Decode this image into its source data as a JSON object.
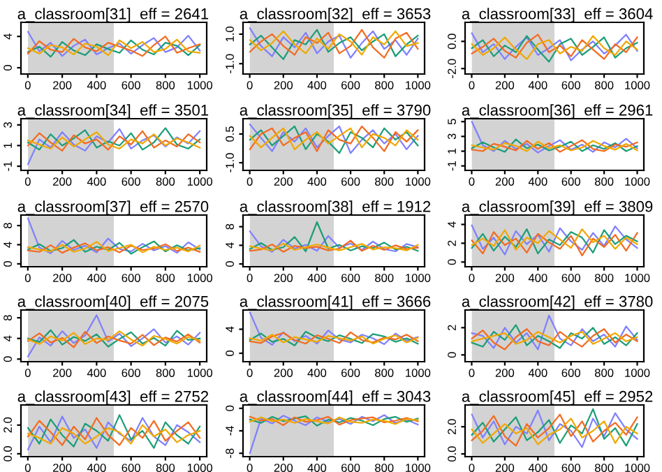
{
  "chart_data": [
    {
      "type": "line",
      "title": "a_classroom[31]  eff = 2641",
      "x": [
        1,
        67,
        133,
        200,
        267,
        333,
        400,
        467,
        533,
        600,
        667,
        733,
        800,
        867,
        933,
        1000
      ],
      "xlim": [
        -40,
        1040
      ],
      "xticks": [
        0,
        200,
        400,
        600,
        800,
        1000
      ],
      "bands": [
        {
          "axis": "x",
          "from": 1,
          "to": 500,
          "color": "#d3d3d3"
        }
      ],
      "ylim": [
        -0.8,
        5.8
      ],
      "yticks": [
        0,
        4
      ],
      "series": [
        {
          "color": "#7f7fff",
          "values": [
            4.6,
            2.1,
            3.2,
            1.5,
            2.8,
            3.6,
            1.7,
            2.5,
            3.1,
            1.8,
            2.9,
            3.8,
            2.0,
            2.6,
            4.1,
            2.2
          ]
        },
        {
          "color": "#1b9e77",
          "values": [
            2.0,
            2.7,
            1.4,
            3.3,
            2.2,
            1.6,
            3.0,
            2.4,
            1.9,
            3.5,
            2.3,
            1.7,
            3.2,
            2.8,
            1.6,
            2.9
          ]
        },
        {
          "color": "#f26b21",
          "values": [
            1.8,
            3.4,
            2.3,
            2.0,
            3.7,
            2.6,
            2.1,
            3.2,
            2.7,
            2.2,
            1.5,
            2.9,
            4.0,
            1.9,
            2.5,
            3.0
          ]
        },
        {
          "color": "#f0a800",
          "values": [
            2.5,
            1.8,
            2.9,
            2.6,
            1.7,
            3.1,
            2.7,
            1.6,
            3.5,
            2.5,
            3.3,
            2.0,
            2.4,
            3.6,
            2.1,
            1.9
          ]
        }
      ]
    },
    {
      "type": "line",
      "title": "a_classroom[32]  eff = 3653",
      "x": [
        1,
        67,
        133,
        200,
        267,
        333,
        400,
        467,
        533,
        600,
        667,
        733,
        800,
        867,
        933,
        1000
      ],
      "xlim": [
        -40,
        1040
      ],
      "xticks": [
        0,
        200,
        400,
        600,
        800,
        1000
      ],
      "bands": [
        {
          "axis": "x",
          "from": 1,
          "to": 500,
          "color": "#d3d3d3"
        }
      ],
      "ylim": [
        -1.7,
        1.8
      ],
      "yticks": [
        {
          "value": -1.0,
          "label": "-1.0"
        },
        {
          "value": 1.0,
          "label": "1.0"
        }
      ],
      "series": [
        {
          "color": "#7f7fff",
          "values": [
            1.4,
            0.2,
            -0.5,
            0.8,
            0.1,
            1.1,
            -0.3,
            0.5,
            0.9,
            -0.6,
            0.4,
            1.2,
            0.0,
            0.6,
            -0.4,
            0.7
          ]
        },
        {
          "color": "#1b9e77",
          "values": [
            0.3,
            0.9,
            0.1,
            -0.7,
            0.6,
            0.3,
            1.3,
            -0.2,
            0.4,
            0.8,
            -0.1,
            0.5,
            1.0,
            -0.5,
            0.3,
            0.9
          ]
        },
        {
          "color": "#f26b21",
          "values": [
            -0.2,
            0.5,
            1.0,
            0.2,
            -0.4,
            0.8,
            0.4,
            1.1,
            -0.3,
            0.2,
            1.3,
            0.1,
            -0.6,
            0.7,
            1.1,
            0.0
          ]
        },
        {
          "color": "#f0a800",
          "values": [
            0.6,
            -0.1,
            0.4,
            1.2,
            0.3,
            -0.3,
            0.7,
            0.0,
            1.0,
            0.5,
            -0.4,
            0.8,
            0.3,
            1.2,
            0.2,
            0.4
          ]
        }
      ]
    },
    {
      "type": "line",
      "title": "a_classroom[33]  eff = 3604",
      "x": [
        1,
        67,
        133,
        200,
        267,
        333,
        400,
        467,
        533,
        600,
        667,
        733,
        800,
        867,
        933,
        1000
      ],
      "xlim": [
        -40,
        1040
      ],
      "xticks": [
        0,
        200,
        400,
        600,
        800,
        1000
      ],
      "bands": [
        {
          "axis": "x",
          "from": 1,
          "to": 500,
          "color": "#d3d3d3"
        }
      ],
      "ylim": [
        -2.4,
        1.4
      ],
      "yticks": [
        {
          "value": -2.0,
          "label": "-2.0"
        },
        {
          "value": 0.0,
          "label": "0.0"
        }
      ],
      "series": [
        {
          "color": "#7f7fff",
          "values": [
            0.6,
            -0.8,
            -0.2,
            -1.3,
            -0.4,
            0.3,
            -1.0,
            -0.5,
            0.1,
            -1.4,
            -0.6,
            0.0,
            -0.9,
            -0.3,
            0.5,
            -0.7
          ]
        },
        {
          "color": "#1b9e77",
          "values": [
            -0.5,
            0.1,
            -1.1,
            -0.3,
            -0.8,
            0.4,
            -0.6,
            -1.5,
            -0.2,
            0.2,
            -1.0,
            -0.4,
            0.3,
            -1.2,
            -0.5,
            -0.1
          ]
        },
        {
          "color": "#f26b21",
          "values": [
            -0.9,
            -0.4,
            0.2,
            -0.7,
            -1.2,
            -0.1,
            0.5,
            -0.8,
            -0.3,
            -1.1,
            0.1,
            -0.6,
            -1.3,
            -0.2,
            -0.8,
            0.3
          ]
        },
        {
          "color": "#f0a800",
          "values": [
            -0.2,
            -1.0,
            -0.5,
            0.3,
            -0.6,
            -1.3,
            -0.2,
            0.1,
            -0.9,
            -0.4,
            -0.7,
            0.4,
            -0.5,
            -1.0,
            0.0,
            -0.6
          ]
        }
      ]
    },
    {
      "type": "line",
      "title": "a_classroom[34]  eff = 3501",
      "x": [
        1,
        67,
        133,
        200,
        267,
        333,
        400,
        467,
        533,
        600,
        667,
        733,
        800,
        867,
        933,
        1000
      ],
      "xlim": [
        -40,
        1040
      ],
      "xticks": [
        0,
        200,
        400,
        600,
        800,
        1000
      ],
      "bands": [
        {
          "axis": "x",
          "from": 1,
          "to": 500,
          "color": "#d3d3d3"
        }
      ],
      "ylim": [
        -1.4,
        3.6
      ],
      "yticks": [
        -1,
        1,
        3
      ],
      "series": [
        {
          "color": "#7f7fff",
          "values": [
            -0.8,
            1.6,
            0.8,
            2.3,
            1.1,
            0.5,
            1.9,
            1.3,
            2.6,
            0.7,
            1.5,
            2.0,
            0.9,
            1.8,
            1.2,
            2.4
          ]
        },
        {
          "color": "#1b9e77",
          "values": [
            1.3,
            0.6,
            2.1,
            1.0,
            1.7,
            2.5,
            0.8,
            1.4,
            1.0,
            2.2,
            0.6,
            1.3,
            2.7,
            1.1,
            0.7,
            1.6
          ]
        },
        {
          "color": "#f26b21",
          "values": [
            1.0,
            2.2,
            1.3,
            0.5,
            2.0,
            1.2,
            1.6,
            0.6,
            1.9,
            1.1,
            2.4,
            0.8,
            1.5,
            0.9,
            2.1,
            1.3
          ]
        },
        {
          "color": "#f0a800",
          "values": [
            1.5,
            1.1,
            0.7,
            1.8,
            0.9,
            1.6,
            2.3,
            1.1,
            0.7,
            1.6,
            1.2,
            2.1,
            1.0,
            1.7,
            1.3,
            0.8
          ]
        }
      ]
    },
    {
      "type": "line",
      "title": "a_classroom[35]  eff = 3790",
      "x": [
        1,
        67,
        133,
        200,
        267,
        333,
        400,
        467,
        533,
        600,
        667,
        733,
        800,
        867,
        933,
        1000
      ],
      "xlim": [
        -40,
        1040
      ],
      "xticks": [
        0,
        200,
        400,
        600,
        800,
        1000
      ],
      "bands": [
        {
          "axis": "x",
          "from": 1,
          "to": 500,
          "color": "#d3d3d3"
        }
      ],
      "ylim": [
        -1.4,
        1.3
      ],
      "yticks": [
        {
          "value": -1.0,
          "label": "-1.0"
        },
        {
          "value": 0.5,
          "label": "0.5"
        }
      ],
      "series": [
        {
          "color": "#7f7fff",
          "values": [
            1.0,
            0.3,
            -0.4,
            0.6,
            0.1,
            0.8,
            -0.2,
            0.4,
            0.9,
            -0.5,
            0.2,
            0.7,
            0.0,
            0.5,
            -0.3,
            0.4
          ]
        },
        {
          "color": "#1b9e77",
          "values": [
            0.2,
            0.7,
            -0.1,
            0.4,
            0.9,
            -0.3,
            0.5,
            0.1,
            -0.5,
            0.6,
            0.3,
            -0.2,
            0.8,
            0.2,
            0.6,
            -0.1
          ]
        },
        {
          "color": "#f26b21",
          "values": [
            -0.3,
            0.5,
            0.8,
            -0.1,
            0.3,
            0.6,
            -0.4,
            0.7,
            0.2,
            0.0,
            0.9,
            0.3,
            -0.4,
            0.6,
            0.1,
            0.7
          ]
        },
        {
          "color": "#f0a800",
          "values": [
            0.4,
            -0.2,
            0.3,
            0.8,
            -0.3,
            0.2,
            0.6,
            0.0,
            0.4,
            0.8,
            -0.2,
            0.5,
            0.3,
            -0.1,
            0.7,
            0.2
          ]
        }
      ]
    },
    {
      "type": "line",
      "title": "a_classroom[36]  eff = 2961",
      "x": [
        1,
        67,
        133,
        200,
        267,
        333,
        400,
        467,
        533,
        600,
        667,
        733,
        800,
        867,
        933,
        1000
      ],
      "xlim": [
        -40,
        1040
      ],
      "xticks": [
        0,
        200,
        400,
        600,
        800,
        1000
      ],
      "bands": [
        {
          "axis": "x",
          "from": 1,
          "to": 500,
          "color": "#d3d3d3"
        }
      ],
      "ylim": [
        -1.6,
        5.4
      ],
      "yticks": [
        -1,
        1,
        3,
        5
      ],
      "series": [
        {
          "color": "#7f7fff",
          "values": [
            5.0,
            1.8,
            1.0,
            2.4,
            1.3,
            2.0,
            0.8,
            1.7,
            2.5,
            1.2,
            1.9,
            0.9,
            2.2,
            1.5,
            2.7,
            1.4
          ]
        },
        {
          "color": "#1b9e77",
          "values": [
            1.4,
            2.2,
            1.5,
            0.9,
            2.6,
            1.4,
            1.9,
            1.1,
            1.6,
            2.3,
            1.0,
            1.8,
            1.3,
            2.1,
            1.0,
            1.7
          ]
        },
        {
          "color": "#f26b21",
          "values": [
            1.2,
            1.0,
            2.0,
            1.6,
            1.1,
            2.4,
            1.3,
            2.1,
            0.9,
            1.7,
            2.5,
            1.3,
            1.0,
            1.9,
            1.6,
            2.2
          ]
        },
        {
          "color": "#f0a800",
          "values": [
            1.8,
            1.5,
            1.2,
            2.1,
            1.7,
            1.0,
            2.3,
            1.4,
            1.8,
            1.1,
            1.5,
            2.4,
            1.7,
            1.2,
            2.0,
            1.1
          ]
        }
      ]
    },
    {
      "type": "line",
      "title": "a_classroom[37]  eff = 2570",
      "x": [
        1,
        67,
        133,
        200,
        267,
        333,
        400,
        467,
        533,
        600,
        667,
        733,
        800,
        867,
        933,
        1000
      ],
      "xlim": [
        -40,
        1040
      ],
      "xticks": [
        0,
        200,
        400,
        600,
        800,
        1000
      ],
      "bands": [
        {
          "axis": "x",
          "from": 1,
          "to": 500,
          "color": "#d3d3d3"
        }
      ],
      "ylim": [
        -0.6,
        10.2
      ],
      "yticks": [
        0,
        4,
        8
      ],
      "series": [
        {
          "color": "#7f7fff",
          "values": [
            9.5,
            3.4,
            2.2,
            4.8,
            2.9,
            3.8,
            2.4,
            5.3,
            3.1,
            2.6,
            4.2,
            2.8,
            3.7,
            2.3,
            4.5,
            3.0
          ]
        },
        {
          "color": "#1b9e77",
          "values": [
            3.0,
            4.1,
            2.7,
            3.3,
            5.0,
            2.5,
            3.6,
            2.9,
            4.4,
            2.1,
            3.5,
            4.7,
            2.6,
            3.9,
            2.8,
            3.3
          ]
        },
        {
          "color": "#f26b21",
          "values": [
            2.8,
            2.5,
            3.9,
            2.3,
            3.4,
            4.3,
            2.8,
            3.5,
            2.4,
            3.8,
            2.9,
            3.2,
            4.1,
            2.7,
            3.4,
            2.5
          ]
        },
        {
          "color": "#f0a800",
          "values": [
            3.5,
            3.0,
            2.6,
            4.0,
            2.5,
            3.2,
            4.6,
            2.7,
            3.3,
            4.0,
            2.4,
            3.6,
            2.9,
            3.4,
            2.6,
            3.8
          ]
        }
      ]
    },
    {
      "type": "line",
      "title": "a_classroom[38]  eff = 1912",
      "x": [
        1,
        67,
        133,
        200,
        267,
        333,
        400,
        467,
        533,
        600,
        667,
        733,
        800,
        867,
        933,
        1000
      ],
      "xlim": [
        -40,
        1040
      ],
      "xticks": [
        0,
        200,
        400,
        600,
        800,
        1000
      ],
      "bands": [
        {
          "axis": "x",
          "from": 1,
          "to": 500,
          "color": "#d3d3d3"
        }
      ],
      "ylim": [
        -0.6,
        10.5
      ],
      "yticks": [
        0,
        4,
        8
      ],
      "series": [
        {
          "color": "#7f7fff",
          "values": [
            7.0,
            3.8,
            2.6,
            5.2,
            3.3,
            4.1,
            2.8,
            6.0,
            3.5,
            4.4,
            3.0,
            4.8,
            3.2,
            2.7,
            4.3,
            3.6
          ]
        },
        {
          "color": "#1b9e77",
          "values": [
            3.2,
            4.5,
            3.0,
            3.6,
            5.8,
            2.7,
            9.0,
            3.3,
            4.1,
            2.9,
            3.8,
            3.4,
            4.6,
            3.1,
            3.7,
            2.8
          ]
        },
        {
          "color": "#f26b21",
          "values": [
            2.8,
            3.1,
            4.2,
            2.6,
            3.9,
            3.4,
            3.7,
            2.9,
            3.3,
            5.0,
            2.8,
            3.9,
            3.0,
            4.0,
            3.2,
            3.5
          ]
        },
        {
          "color": "#f0a800",
          "values": [
            3.8,
            3.3,
            2.9,
            4.4,
            3.0,
            3.6,
            4.2,
            3.5,
            2.9,
            3.6,
            4.3,
            3.1,
            3.6,
            3.4,
            2.9,
            4.1
          ]
        }
      ]
    },
    {
      "type": "line",
      "title": "a_classroom[39]  eff = 3809",
      "x": [
        1,
        67,
        133,
        200,
        267,
        333,
        400,
        467,
        533,
        600,
        667,
        733,
        800,
        867,
        933,
        1000
      ],
      "xlim": [
        -40,
        1040
      ],
      "xticks": [
        0,
        200,
        400,
        600,
        800,
        1000
      ],
      "bands": [
        {
          "axis": "x",
          "from": 1,
          "to": 500,
          "color": "#d3d3d3"
        }
      ],
      "ylim": [
        -0.5,
        5.0
      ],
      "yticks": [
        0,
        2,
        4
      ],
      "series": [
        {
          "color": "#7f7fff",
          "values": [
            3.9,
            1.4,
            2.6,
            0.8,
            3.3,
            1.9,
            2.9,
            1.1,
            3.6,
            2.2,
            1.3,
            3.1,
            1.7,
            3.8,
            2.4,
            1.5
          ]
        },
        {
          "color": "#1b9e77",
          "values": [
            1.5,
            3.0,
            1.2,
            2.7,
            1.6,
            3.5,
            0.9,
            2.4,
            1.8,
            3.2,
            2.6,
            1.0,
            3.4,
            1.9,
            2.8,
            2.2
          ]
        },
        {
          "color": "#f26b21",
          "values": [
            2.3,
            0.9,
            3.2,
            1.8,
            2.5,
            1.0,
            3.0,
            2.1,
            1.4,
            2.8,
            0.7,
            2.5,
            1.6,
            2.9,
            1.2,
            3.1
          ]
        },
        {
          "color": "#f0a800",
          "values": [
            1.8,
            2.5,
            1.7,
            3.4,
            1.3,
            2.6,
            2.0,
            3.3,
            2.4,
            1.5,
            3.5,
            2.1,
            2.8,
            1.4,
            2.6,
            1.9
          ]
        }
      ]
    },
    {
      "type": "line",
      "title": "a_classroom[40]  eff = 2075",
      "x": [
        1,
        67,
        133,
        200,
        267,
        333,
        400,
        467,
        533,
        600,
        667,
        733,
        800,
        867,
        933,
        1000
      ],
      "xlim": [
        -40,
        1040
      ],
      "xticks": [
        0,
        200,
        400,
        600,
        800,
        1000
      ],
      "bands": [
        {
          "axis": "x",
          "from": 1,
          "to": 500,
          "color": "#d3d3d3"
        }
      ],
      "ylim": [
        -0.5,
        9.5
      ],
      "yticks": [
        0,
        4,
        8
      ],
      "series": [
        {
          "color": "#7f7fff",
          "values": [
            0.5,
            4.2,
            2.6,
            5.4,
            3.1,
            4.6,
            8.5,
            3.4,
            4.9,
            2.5,
            4.0,
            5.8,
            3.2,
            4.4,
            2.8,
            5.1
          ]
        },
        {
          "color": "#1b9e77",
          "values": [
            4.0,
            3.3,
            5.6,
            2.8,
            4.3,
            3.5,
            4.8,
            2.4,
            3.9,
            5.2,
            3.0,
            4.1,
            2.6,
            5.5,
            3.7,
            4.0
          ]
        },
        {
          "color": "#f26b21",
          "values": [
            3.5,
            5.0,
            3.2,
            4.1,
            2.3,
            5.3,
            3.1,
            4.4,
            3.6,
            3.0,
            4.7,
            2.7,
            4.2,
            3.4,
            4.8,
            3.2
          ]
        },
        {
          "color": "#f0a800",
          "values": [
            3.8,
            2.9,
            4.4,
            3.6,
            5.1,
            2.9,
            4.0,
            3.7,
            5.4,
            3.8,
            2.6,
            4.5,
            3.9,
            3.0,
            4.3,
            3.6
          ]
        }
      ]
    },
    {
      "type": "line",
      "title": "a_classroom[41]  eff = 3666",
      "x": [
        1,
        67,
        133,
        200,
        267,
        333,
        400,
        467,
        533,
        600,
        667,
        733,
        800,
        867,
        933,
        1000
      ],
      "xlim": [
        -40,
        1040
      ],
      "xticks": [
        0,
        200,
        400,
        600,
        800,
        1000
      ],
      "bands": [
        {
          "axis": "x",
          "from": 1,
          "to": 500,
          "color": "#d3d3d3"
        }
      ],
      "ylim": [
        -1.4,
        7.2
      ],
      "yticks": [
        0,
        4
      ],
      "series": [
        {
          "color": "#7f7fff",
          "values": [
            6.8,
            2.6,
            1.4,
            3.5,
            2.0,
            2.9,
            1.6,
            3.8,
            2.3,
            1.8,
            3.1,
            2.5,
            1.5,
            3.3,
            2.1,
            2.7
          ]
        },
        {
          "color": "#1b9e77",
          "values": [
            2.2,
            3.3,
            1.9,
            2.4,
            1.3,
            3.6,
            2.6,
            2.0,
            3.0,
            2.4,
            1.7,
            3.2,
            2.8,
            1.9,
            2.5,
            1.6
          ]
        },
        {
          "color": "#f26b21",
          "values": [
            2.0,
            1.7,
            2.8,
            3.4,
            2.2,
            1.6,
            3.0,
            2.4,
            1.7,
            3.5,
            2.2,
            1.8,
            2.6,
            2.3,
            3.1,
            2.0
          ]
        },
        {
          "color": "#f0a800",
          "values": [
            2.5,
            2.1,
            3.1,
            1.8,
            2.7,
            2.3,
            1.9,
            2.9,
            2.5,
            2.1,
            2.8,
            1.6,
            2.4,
            3.0,
            1.8,
            2.6
          ]
        }
      ]
    },
    {
      "type": "line",
      "title": "a_classroom[42]  eff = 3780",
      "x": [
        1,
        67,
        133,
        200,
        267,
        333,
        400,
        467,
        533,
        600,
        667,
        733,
        800,
        867,
        933,
        1000
      ],
      "xlim": [
        -40,
        1040
      ],
      "xticks": [
        0,
        200,
        400,
        600,
        800,
        1000
      ],
      "bands": [
        {
          "axis": "x",
          "from": 1,
          "to": 500,
          "color": "#d3d3d3"
        }
      ],
      "ylim": [
        -0.5,
        3.3
      ],
      "yticks": [
        0,
        2
      ],
      "series": [
        {
          "color": "#7f7fff",
          "values": [
            1.6,
            1.4,
            0.5,
            2.0,
            0.9,
            1.6,
            0.4,
            2.9,
            1.2,
            0.7,
            1.9,
            1.0,
            1.5,
            0.6,
            2.1,
            1.1
          ]
        },
        {
          "color": "#1b9e77",
          "values": [
            0.9,
            0.6,
            1.7,
            1.1,
            2.2,
            0.7,
            1.4,
            1.0,
            0.5,
            1.6,
            1.2,
            2.0,
            0.8,
            1.3,
            0.7,
            1.6
          ]
        },
        {
          "color": "#f26b21",
          "values": [
            1.2,
            1.8,
            0.9,
            0.4,
            1.3,
            1.9,
            1.0,
            0.7,
            1.7,
            1.1,
            0.6,
            1.4,
            1.9,
            0.9,
            1.5,
            1.0
          ]
        },
        {
          "color": "#f0a800",
          "values": [
            1.0,
            1.2,
            1.4,
            1.6,
            0.8,
            1.1,
            1.7,
            1.3,
            0.9,
            1.4,
            1.7,
            0.8,
            1.2,
            1.6,
            1.0,
            1.3
          ]
        }
      ]
    },
    {
      "type": "line",
      "title": "a_classroom[43]  eff = 2752",
      "x": [
        1,
        67,
        133,
        200,
        267,
        333,
        400,
        467,
        533,
        600,
        667,
        733,
        800,
        867,
        933,
        1000
      ],
      "xlim": [
        -40,
        1040
      ],
      "xticks": [
        0,
        200,
        400,
        600,
        800,
        1000
      ],
      "bands": [
        {
          "axis": "x",
          "from": 1,
          "to": 500,
          "color": "#d3d3d3"
        }
      ],
      "ylim": [
        -0.2,
        3.4
      ],
      "yticks": [
        {
          "value": 0.0,
          "label": "0.0"
        },
        {
          "value": 2.0,
          "label": "2.0"
        }
      ],
      "series": [
        {
          "color": "#7f7fff",
          "values": [
            0.3,
            1.9,
            0.8,
            2.6,
            1.1,
            1.7,
            0.4,
            2.2,
            1.4,
            0.9,
            2.5,
            1.2,
            0.6,
            2.0,
            1.5,
            0.8
          ]
        },
        {
          "color": "#1b9e77",
          "values": [
            1.8,
            0.7,
            2.4,
            1.3,
            0.5,
            2.1,
            1.6,
            0.9,
            2.7,
            1.0,
            1.6,
            0.4,
            2.2,
            1.3,
            0.7,
            1.9
          ]
        },
        {
          "color": "#f26b21",
          "values": [
            1.2,
            2.3,
            1.5,
            0.6,
            1.9,
            1.0,
            2.5,
            1.3,
            0.6,
            1.8,
            1.1,
            2.3,
            0.9,
            1.6,
            2.2,
            1.1
          ]
        },
        {
          "color": "#f0a800",
          "values": [
            1.4,
            1.1,
            0.7,
            1.8,
            1.4,
            0.7,
            1.2,
            1.8,
            1.5,
            0.7,
            2.0,
            1.2,
            1.7,
            0.8,
            1.3,
            1.6
          ]
        }
      ]
    },
    {
      "type": "line",
      "title": "a_classroom[44]  eff = 3043",
      "x": [
        1,
        67,
        133,
        200,
        267,
        333,
        400,
        467,
        533,
        600,
        667,
        733,
        800,
        867,
        933,
        1000
      ],
      "xlim": [
        -40,
        1040
      ],
      "xticks": [
        0,
        200,
        400,
        600,
        800,
        1000
      ],
      "bands": [
        {
          "axis": "x",
          "from": 1,
          "to": 500,
          "color": "#d3d3d3"
        }
      ],
      "ylim": [
        -8.6,
        0.6
      ],
      "yticks": [
        -8,
        -4,
        0
      ],
      "series": [
        {
          "color": "#7f7fff",
          "values": [
            -8.0,
            -1.8,
            -2.7,
            -1.3,
            -2.2,
            -3.0,
            -1.6,
            -2.4,
            -1.9,
            -2.8,
            -1.5,
            -2.3,
            -1.2,
            -2.6,
            -2.0,
            -2.9
          ]
        },
        {
          "color": "#1b9e77",
          "values": [
            -2.0,
            -2.6,
            -1.5,
            -2.3,
            -1.8,
            -1.4,
            -3.1,
            -2.0,
            -2.5,
            -1.7,
            -2.2,
            -3.0,
            -1.9,
            -1.5,
            -2.4,
            -1.8
          ]
        },
        {
          "color": "#f26b21",
          "values": [
            -1.5,
            -2.2,
            -1.9,
            -3.0,
            -1.6,
            -2.4,
            -2.1,
            -1.5,
            -2.9,
            -2.1,
            -1.8,
            -1.6,
            -2.5,
            -2.2,
            -1.7,
            -2.3
          ]
        },
        {
          "color": "#f0a800",
          "values": [
            -2.4,
            -1.6,
            -2.3,
            -2.0,
            -2.6,
            -1.9,
            -2.3,
            -2.7,
            -1.6,
            -2.4,
            -2.6,
            -2.0,
            -2.2,
            -2.8,
            -1.9,
            -2.1
          ]
        }
      ]
    },
    {
      "type": "line",
      "title": "a_classroom[45]  eff = 2952",
      "x": [
        1,
        67,
        133,
        200,
        267,
        333,
        400,
        467,
        533,
        600,
        667,
        733,
        800,
        867,
        933,
        1000
      ],
      "xlim": [
        -40,
        1040
      ],
      "xticks": [
        0,
        200,
        400,
        600,
        800,
        1000
      ],
      "bands": [
        {
          "axis": "x",
          "from": 1,
          "to": 500,
          "color": "#d3d3d3"
        }
      ],
      "ylim": [
        -0.2,
        3.6
      ],
      "yticks": [
        {
          "value": 0.0,
          "label": "0.0"
        },
        {
          "value": 2.0,
          "label": "2.0"
        }
      ],
      "series": [
        {
          "color": "#7f7fff",
          "values": [
            2.9,
            1.2,
            2.4,
            0.7,
            2.0,
            1.5,
            3.2,
            1.0,
            2.2,
            1.7,
            0.5,
            2.6,
            1.3,
            3.0,
            1.8,
            1.1
          ]
        },
        {
          "color": "#1b9e77",
          "values": [
            1.4,
            2.3,
            0.9,
            1.8,
            2.7,
            1.0,
            1.6,
            2.5,
            0.8,
            2.1,
            1.5,
            3.3,
            1.1,
            1.9,
            0.6,
            2.2
          ]
        },
        {
          "color": "#f26b21",
          "values": [
            1.0,
            1.7,
            2.8,
            1.3,
            0.6,
            2.2,
            1.2,
            1.9,
            2.9,
            1.3,
            2.4,
            0.9,
            1.7,
            2.3,
            1.4,
            2.7
          ]
        },
        {
          "color": "#f0a800",
          "values": [
            1.8,
            0.8,
            1.5,
            2.2,
            1.5,
            1.9,
            0.7,
            1.4,
            1.8,
            2.6,
            1.2,
            1.7,
            2.4,
            0.8,
            2.0,
            1.5
          ]
        }
      ]
    }
  ]
}
